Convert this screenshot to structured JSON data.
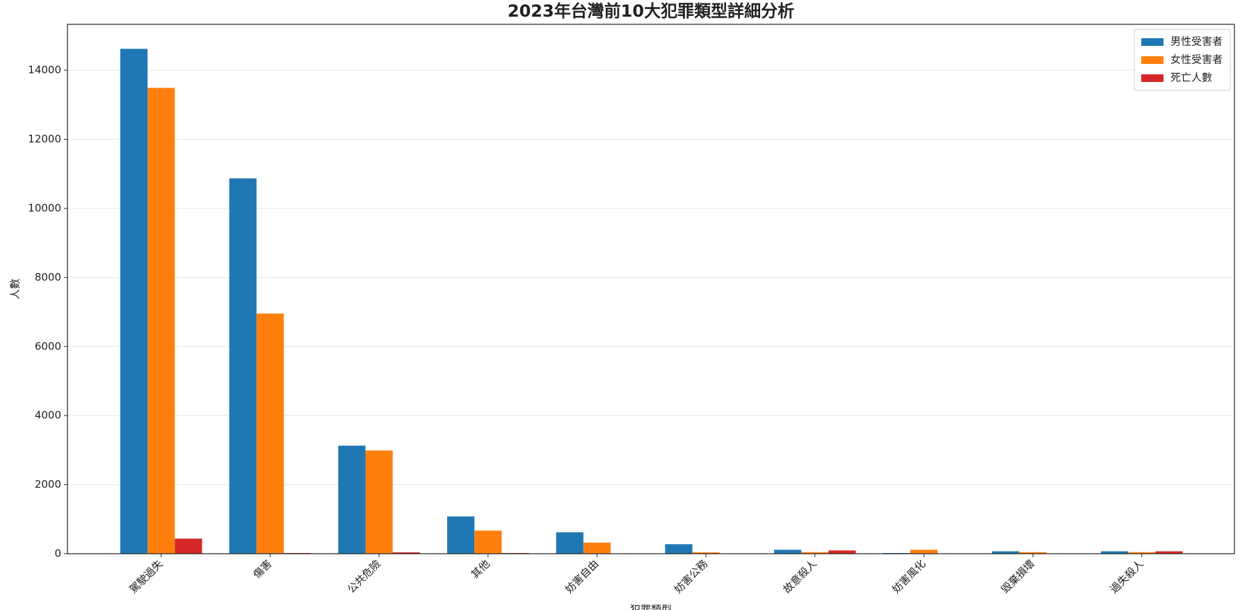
{
  "chart_data": {
    "type": "bar",
    "title": "2023年台灣前10大犯罪類型詳細分析",
    "x_label": "犯罪類型",
    "y_label": "人數",
    "categories": [
      "駕駛過失",
      "傷害",
      "公共危險",
      "其他",
      "妨害自由",
      "妨害公務",
      "故意殺人",
      "妨害風化",
      "毀棄損壞",
      "過失殺人"
    ],
    "series": [
      {
        "name": "男性受害者",
        "color": "#1f77b4",
        "values": [
          14620,
          10870,
          3130,
          1080,
          620,
          275,
          115,
          20,
          70,
          70
        ]
      },
      {
        "name": "女性受害者",
        "color": "#ff7f0e",
        "values": [
          13490,
          6955,
          2990,
          670,
          320,
          40,
          45,
          115,
          45,
          45
        ]
      },
      {
        "name": "死亡人數",
        "color": "#d62728",
        "values": [
          437,
          20,
          40,
          20,
          5,
          2,
          95,
          2,
          1,
          70
        ]
      }
    ],
    "ylim": [
      0,
      15330
    ],
    "yticks": [
      0,
      2000,
      4000,
      6000,
      8000,
      10000,
      12000,
      14000
    ],
    "grid": true,
    "legend": "upper right"
  }
}
